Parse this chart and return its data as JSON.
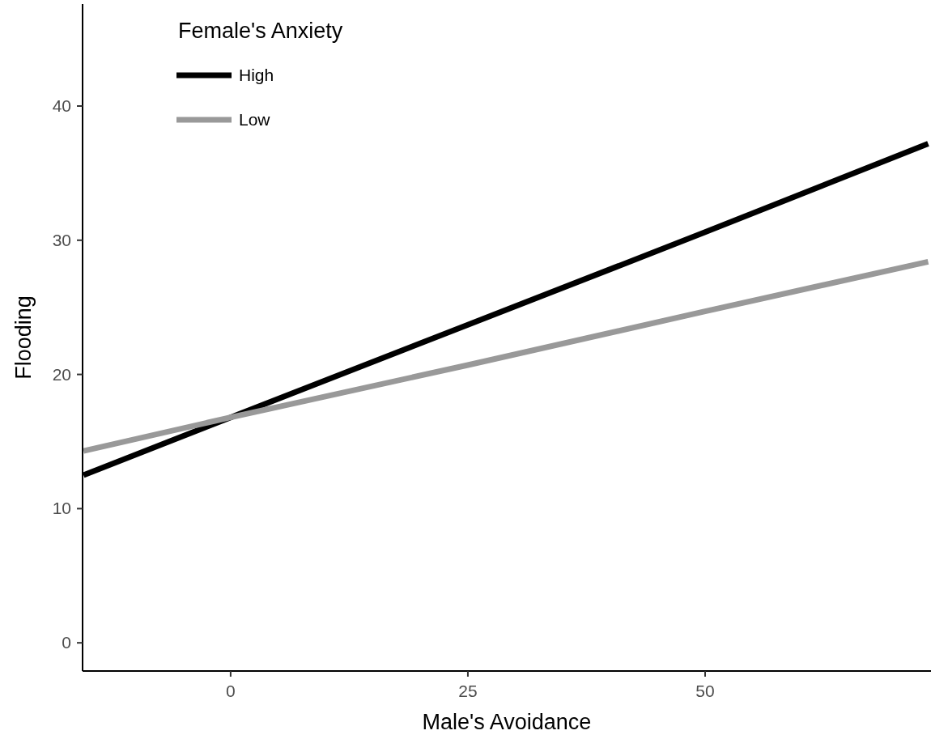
{
  "chart_data": {
    "type": "line",
    "xlabel": "Male's Avoidance",
    "ylabel": "Flooding",
    "legend_title": "Female's Anxiety",
    "legend": "top left",
    "grid": false,
    "marker": "none",
    "line_style": "solid",
    "xlim": [
      -15.6,
      73.8
    ],
    "xticks": [
      0,
      25,
      50
    ],
    "ylim": [
      -2.1,
      47.6
    ],
    "yticks": [
      0,
      10,
      20,
      30,
      40
    ],
    "x": [
      -15.5,
      0,
      25,
      50,
      73.5
    ],
    "series": [
      {
        "name": "High",
        "color": "#000000",
        "values": [
          12.5,
          16.8,
          23.7,
          30.6,
          37.2
        ]
      },
      {
        "name": "Low",
        "color": "#999999",
        "values": [
          14.3,
          16.8,
          20.7,
          24.7,
          28.4
        ]
      }
    ]
  }
}
